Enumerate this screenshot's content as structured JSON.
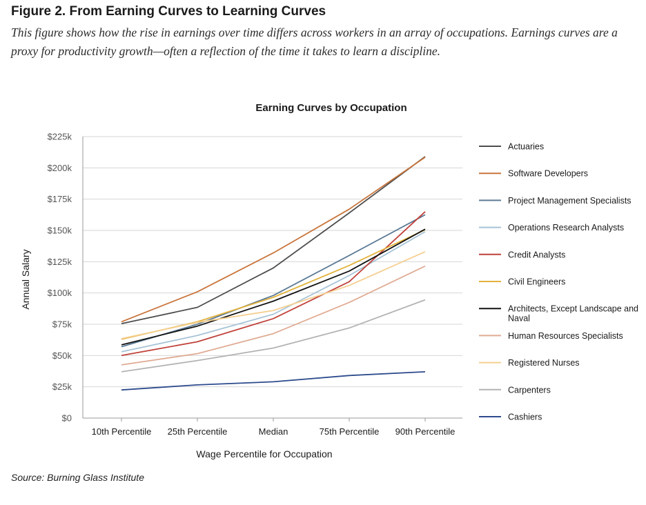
{
  "figure": {
    "title": "Figure 2. From Earning Curves to Learning Curves",
    "caption": "This figure shows how the rise in earnings over time differs across workers in an array of occupations. Earnings curves are a proxy for productivity growth—often a reflection of the time it takes to learn a discipline.",
    "source": "Source: Burning Glass Institute"
  },
  "chart_data": {
    "type": "line",
    "title": "Earning Curves by Occupation",
    "xlabel": "Wage Percentile for Occupation",
    "ylabel": "Annual Salary",
    "categories": [
      "10th Percentile",
      "25th Percentile",
      "Median",
      "75th Percentile",
      "90th Percentile"
    ],
    "ylim": [
      0,
      225000
    ],
    "yticks": [
      {
        "value": 0,
        "label": "$0"
      },
      {
        "value": 25000,
        "label": "$25k"
      },
      {
        "value": 50000,
        "label": "$50k"
      },
      {
        "value": 75000,
        "label": "$75k"
      },
      {
        "value": 100000,
        "label": "$100k"
      },
      {
        "value": 125000,
        "label": "$125k"
      },
      {
        "value": 150000,
        "label": "$150k"
      },
      {
        "value": 175000,
        "label": "$175k"
      },
      {
        "value": 200000,
        "label": "$200k"
      },
      {
        "value": 225000,
        "label": "$225k"
      }
    ],
    "grid": true,
    "legend_position": "right",
    "series": [
      {
        "name": "Actuaries",
        "color": "#4d4d4d",
        "values": [
          75500,
          88500,
          120000,
          164000,
          209000
        ]
      },
      {
        "name": "Software Developers",
        "color": "#c8743a",
        "values": [
          77000,
          101000,
          132000,
          167000,
          208500
        ]
      },
      {
        "name": "Project Management Specialists",
        "color": "#5b7a95",
        "values": [
          57000,
          75000,
          98000,
          130000,
          162500
        ]
      },
      {
        "name": "Operations Research Analysts",
        "color": "#a7c3d6",
        "values": [
          53000,
          66000,
          83000,
          114000,
          149000
        ]
      },
      {
        "name": "Credit Analysts",
        "color": "#c0413a",
        "values": [
          50000,
          61000,
          79500,
          109000,
          165000
        ]
      },
      {
        "name": "Civil Engineers",
        "color": "#e2b23b",
        "values": [
          63000,
          77000,
          96500,
          122000,
          150500
        ]
      },
      {
        "name": "Architects, Except Landscape and Naval",
        "color": "#111111",
        "values": [
          58500,
          73500,
          93500,
          117500,
          151000
        ]
      },
      {
        "name": "Human Resources Specialists",
        "color": "#e0ab94",
        "values": [
          42500,
          51500,
          67500,
          92500,
          121500
        ]
      },
      {
        "name": "Registered Nurses",
        "color": "#f5cf90",
        "values": [
          63500,
          76500,
          86000,
          106000,
          133000
        ]
      },
      {
        "name": "Carpenters",
        "color": "#b3b3b3",
        "values": [
          37000,
          46000,
          56000,
          72000,
          94500
        ]
      },
      {
        "name": "Cashiers",
        "color": "#2c4a8c",
        "values": [
          22500,
          26500,
          29000,
          34000,
          37000
        ]
      }
    ]
  }
}
